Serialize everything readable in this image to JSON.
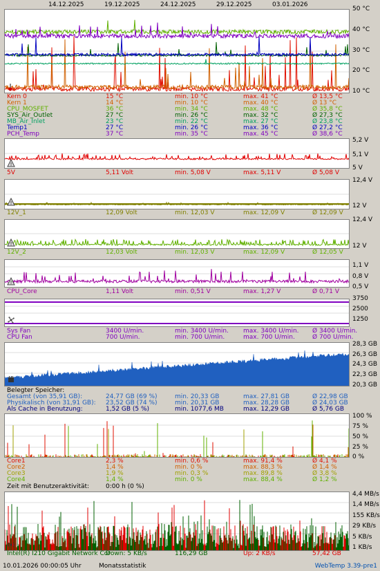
{
  "dates": [
    "14.12.2025",
    "19.12.2025",
    "24.12.2025",
    "29.12.2025",
    "03.01.2026"
  ],
  "temp": {
    "axis": [
      "50 °C",
      "40 °C",
      "30 °C",
      "20 °C",
      "10 °C"
    ],
    "rows": [
      {
        "name": "Kern 0",
        "cur": "15 °C",
        "min": "min. 10 °C",
        "max": "max. 41 °C",
        "avg": "Ø 13,5 °C",
        "color": "#e01000"
      },
      {
        "name": "Kern 1",
        "cur": "14 °C",
        "min": "min. 10 °C",
        "max": "max. 40 °C",
        "avg": "Ø 13 °C",
        "color": "#d06000"
      },
      {
        "name": "CPU_MOSFET",
        "cur": "36 °C",
        "min": "min. 34 °C",
        "max": "max. 48 °C",
        "avg": "Ø 35,8 °C",
        "color": "#60b000"
      },
      {
        "name": "SYS_Air_Outlet",
        "cur": "27 °C",
        "min": "min. 26 °C",
        "max": "max. 32 °C",
        "avg": "Ø 27,3 °C",
        "color": "#006000"
      },
      {
        "name": "MB_Air_Inlet",
        "cur": "23 °C",
        "min": "min. 22 °C",
        "max": "max. 27 °C",
        "avg": "Ø 23,8 °C",
        "color": "#00a060"
      },
      {
        "name": "Temp1",
        "cur": "27 °C",
        "min": "min. 26 °C",
        "max": "max. 36 °C",
        "avg": "Ø 27,2 °C",
        "color": "#0000c0"
      },
      {
        "name": "PCH_Temp",
        "cur": "37 °C",
        "min": "min. 35 °C",
        "max": "max. 45 °C",
        "avg": "Ø 38,6 °C",
        "color": "#8000c0"
      }
    ]
  },
  "v5": {
    "axis": [
      "5,2 V",
      "5,1 V",
      "5 V"
    ],
    "row": {
      "name": "5V",
      "cur": "5,11 Volt",
      "min": "min. 5,08 V",
      "max": "max. 5,11 V",
      "avg": "Ø 5,08 V",
      "color": "#e00000"
    }
  },
  "v12_1": {
    "axis": [
      "12,4 V",
      "12 V"
    ],
    "row": {
      "name": "12V_1",
      "cur": "12,09 Volt",
      "min": "min. 12,03 V",
      "max": "max. 12,09 V",
      "avg": "Ø 12,09 V",
      "color": "#808000"
    }
  },
  "v12_2": {
    "axis": [
      "12,4 V",
      "12 V"
    ],
    "row": {
      "name": "12V_2",
      "cur": "12,03 Volt",
      "min": "min. 12,03 V",
      "max": "max. 12,09 V",
      "avg": "Ø 12,05 V",
      "color": "#60b000"
    }
  },
  "vcore": {
    "axis": [
      "1,1 V",
      "0,8 V",
      "0,5 V"
    ],
    "row": {
      "name": "CPU_Core",
      "cur": "1,11 Volt",
      "min": "min. 0,51 V",
      "max": "max. 1,27 V",
      "avg": "Ø 0,71 V",
      "color": "#a000a0"
    }
  },
  "fans": {
    "axis": [
      "3750",
      "2500",
      "1250"
    ],
    "rows": [
      {
        "name": "Sys Fan",
        "cur": "3400 U/min.",
        "min": "min. 3400 U/min.",
        "max": "max. 3400 U/min.",
        "avg": "Ø 3400 U/min.",
        "color": "#8000c0"
      },
      {
        "name": "CPU Fan",
        "cur": "700 U/min.",
        "min": "min. 700 U/min.",
        "max": "max. 700 U/min.",
        "avg": "Ø 700 U/min.",
        "color": "#8000c0"
      }
    ]
  },
  "mem": {
    "axis": [
      "28,3 GB",
      "26,3 GB",
      "24,3 GB",
      "22,3 GB",
      "20,3 GB"
    ],
    "title": "Belegter Speicher:",
    "rows": [
      {
        "name": "Gesamt (von 35,91 GB):",
        "cur": "24,77 GB (69 %)",
        "min": "min. 20,33 GB",
        "max": "max. 27,81 GB",
        "avg": "Ø 22,98 GB",
        "color": "#2060c0"
      },
      {
        "name": "Physikalisch (von 31,91 GB):",
        "cur": "23,52 GB (74 %)",
        "min": "min. 20,31 GB",
        "max": "max. 28,28 GB",
        "avg": "Ø 24,03 GB",
        "color": "#2060c0"
      },
      {
        "name": "Als Cache in Benutzung:",
        "cur": "1,52 GB (5 %)",
        "min": "min. 1077,6 MB",
        "max": "max. 12,29 GB",
        "avg": "Ø 5,76 GB",
        "color": "#000080"
      }
    ]
  },
  "cpu": {
    "axis": [
      "100 %",
      "75 %",
      "50 %",
      "25 %",
      "0 %"
    ],
    "rows": [
      {
        "name": "Core1",
        "cur": "2,3 %",
        "min": "min. 0,6 %",
        "max": "max. 91,4 %",
        "avg": "Ø 4,1 %",
        "color": "#e01000"
      },
      {
        "name": "Core2",
        "cur": "1,4 %",
        "min": "min. 0 %",
        "max": "max. 88,3 %",
        "avg": "Ø 1,4 %",
        "color": "#d06000"
      },
      {
        "name": "Core3",
        "cur": "1,9 %",
        "min": "min. 0,3 %",
        "max": "max. 89,8 %",
        "avg": "Ø 3,8 %",
        "color": "#a0a000"
      },
      {
        "name": "Core4",
        "cur": "1,4 %",
        "min": "min. 0 %",
        "max": "max. 88,4 %",
        "avg": "Ø 1,2 %",
        "color": "#60b000"
      }
    ],
    "activity_label": "Zeit mit Benutzeraktivität:",
    "activity_value": "0:00 h (0 %)"
  },
  "net": {
    "axis": [
      "4,4 MB/s",
      "1,4 MB/s",
      "155 KB/s",
      "29 KB/s",
      "5 KB/s",
      "1 KB/s"
    ],
    "row": {
      "name": "Intel(R) I210 Gigabit Network Cor",
      "down": "Down: 5 KB/s",
      "down_total": "116,29 GB",
      "up": "Up: 2 KB/s",
      "up_total": "57,42 GB"
    }
  },
  "footer": {
    "timestamp": "10.01.2026 00:00:05 Uhr",
    "mode": "Monatsstatistik",
    "app": "WebTemp 3.39-pre1"
  }
}
